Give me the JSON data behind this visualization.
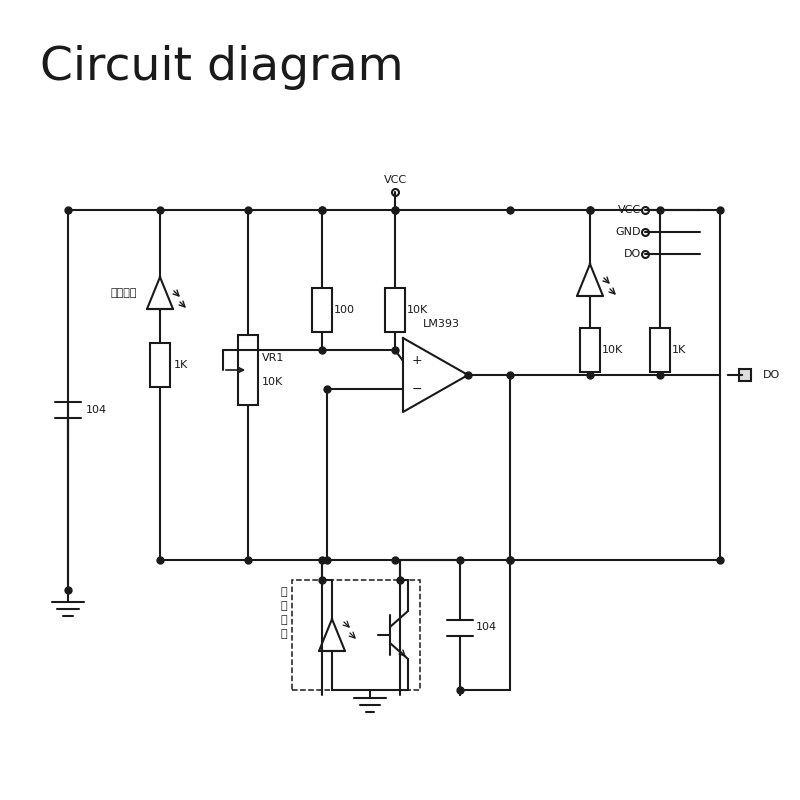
{
  "title": "Circuit diagram",
  "title_fontsize": 34,
  "background_color": "#ffffff",
  "line_color": "#1a1a1a",
  "line_width": 1.5,
  "dot_size": 5,
  "labels": {
    "vcc_top": "VCC",
    "led_power": "电源指示",
    "cap1": "104",
    "res1k": "1K",
    "vr1": "VR1",
    "vr1_val": "10K",
    "res100": "100",
    "res10k_left": "10K",
    "lm393": "LM393",
    "res10k_right": "10K",
    "res1k_right": "1K",
    "cap2": "104",
    "ir_label1": "红",
    "ir_label2": "外",
    "ir_label3": "对",
    "ir_label4": "管",
    "vcc_conn": "VCC",
    "gnd_conn": "GND",
    "do_conn": "DO",
    "do_out": "DO"
  }
}
